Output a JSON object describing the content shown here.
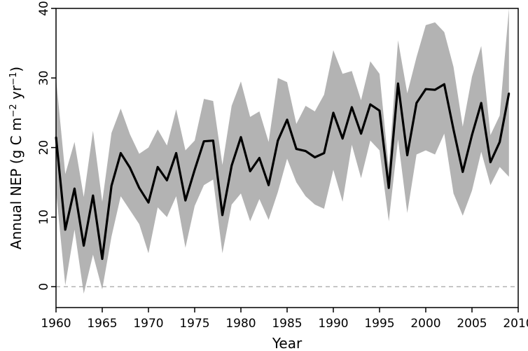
{
  "chart_data": {
    "type": "line",
    "xlabel": "Year",
    "ylabel": {
      "prefix": "Annual NEP (g C m",
      "exp1": "−2",
      "mid": " yr",
      "exp2": "−1",
      "suffix": ")"
    },
    "xlim": [
      1960,
      2010
    ],
    "ylim": [
      -3,
      40
    ],
    "x_ticks": [
      1960,
      1965,
      1970,
      1975,
      1980,
      1985,
      1990,
      1995,
      2000,
      2005,
      2010
    ],
    "y_ticks": [
      0,
      10,
      20,
      30,
      40
    ],
    "reference_line": {
      "y": 0,
      "style": "dashed"
    },
    "colors": {
      "band": "#b3b3b3",
      "line": "#000000",
      "reference": "#9a9a9a"
    },
    "x": [
      1960,
      1961,
      1962,
      1963,
      1964,
      1965,
      1966,
      1967,
      1968,
      1969,
      1970,
      1971,
      1972,
      1973,
      1974,
      1975,
      1976,
      1977,
      1978,
      1979,
      1980,
      1981,
      1982,
      1983,
      1984,
      1985,
      1986,
      1987,
      1988,
      1989,
      1990,
      1991,
      1992,
      1993,
      1994,
      1995,
      1996,
      1997,
      1998,
      1999,
      2000,
      2001,
      2002,
      2003,
      2004,
      2005,
      2006,
      2007,
      2008,
      2009
    ],
    "series": [
      {
        "values": [
          21.5,
          8.2,
          14.1,
          5.9,
          13.1,
          4.0,
          14.5,
          19.2,
          17.1,
          14.2,
          12.1,
          17.2,
          15.3,
          19.2,
          12.4,
          16.8,
          20.9,
          21.0,
          10.3,
          17.4,
          21.5,
          16.6,
          18.5,
          14.6,
          21.0,
          24.0,
          19.8,
          19.5,
          18.6,
          19.2,
          25.0,
          21.3,
          25.8,
          22.0,
          26.2,
          25.3,
          14.2,
          29.2,
          18.9,
          26.4,
          28.4,
          28.3,
          29.1,
          22.6,
          16.5,
          21.8,
          26.4,
          17.9,
          20.8,
          27.8
        ]
      }
    ],
    "band": {
      "upper": [
        30.0,
        16.2,
        20.8,
        12.9,
        22.4,
        12.2,
        22.1,
        25.6,
        21.9,
        19.1,
        20.0,
        22.6,
        20.3,
        25.5,
        19.6,
        21.0,
        27.0,
        26.7,
        17.5,
        26.0,
        29.5,
        24.4,
        25.2,
        20.8,
        30.0,
        29.4,
        23.4,
        26.0,
        25.2,
        27.6,
        34.0,
        30.6,
        31.0,
        26.8,
        32.4,
        30.6,
        17.0,
        35.4,
        27.8,
        33.0,
        37.6,
        38.0,
        36.6,
        31.6,
        23.0,
        30.2,
        34.6,
        21.8,
        24.6,
        40.0
      ],
      "lower": [
        13.8,
        0.2,
        8.2,
        -1.0,
        4.6,
        -0.4,
        7.2,
        13.0,
        11.0,
        9.0,
        4.8,
        11.4,
        10.0,
        13.0,
        5.6,
        11.6,
        14.6,
        15.4,
        4.8,
        11.8,
        13.4,
        9.4,
        12.6,
        9.6,
        13.6,
        18.4,
        15.0,
        13.0,
        11.8,
        11.2,
        16.8,
        12.2,
        20.4,
        15.6,
        21.0,
        19.6,
        9.4,
        21.2,
        10.6,
        19.0,
        19.6,
        19.0,
        22.0,
        13.4,
        10.2,
        13.8,
        19.4,
        14.6,
        17.2,
        15.8
      ]
    }
  }
}
